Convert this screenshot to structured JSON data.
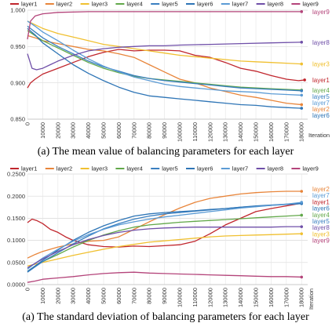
{
  "chart_data": [
    {
      "type": "line",
      "xlabel": "Iteration",
      "ylim": [
        0.85,
        1.0
      ],
      "y_ticks": [
        "0.850",
        "0.900",
        "0.950",
        "1.000"
      ],
      "y_tick_values": [
        0.85,
        0.9,
        0.95,
        1.0
      ],
      "x_ticks": [
        "0",
        "10000",
        "20000",
        "30000",
        "40000",
        "50000",
        "60000",
        "70000",
        "80000",
        "90000",
        "100000",
        "110000",
        "120000",
        "130000",
        "140000",
        "150000",
        "160000",
        "170000",
        "180000"
      ],
      "xlim": [
        0,
        184000
      ],
      "grid": true,
      "legend_position": "top",
      "caption": "(a) The mean value of balancing parameters for each layer",
      "series": [
        {
          "name": "layer1",
          "color": "#c0262d",
          "x": [
            0,
            2000,
            5000,
            10000,
            20000,
            30000,
            40000,
            50000,
            55000,
            60000,
            70000,
            80000,
            90000,
            100000,
            110000,
            120000,
            130000,
            140000,
            150000,
            160000,
            170000,
            178000,
            182000
          ],
          "values": [
            0.893,
            0.9,
            0.905,
            0.912,
            0.92,
            0.928,
            0.936,
            0.942,
            0.944,
            0.946,
            0.944,
            0.945,
            0.945,
            0.944,
            0.938,
            0.935,
            0.928,
            0.92,
            0.916,
            0.91,
            0.905,
            0.903,
            0.904
          ]
        },
        {
          "name": "layer2",
          "color": "#e8853a",
          "x": [
            0,
            5000,
            10000,
            20000,
            30000,
            40000,
            50000,
            60000,
            70000,
            80000,
            90000,
            100000,
            110000,
            120000,
            130000,
            140000,
            150000,
            160000,
            170000,
            180000
          ],
          "values": [
            0.965,
            0.962,
            0.958,
            0.954,
            0.95,
            0.946,
            0.944,
            0.94,
            0.935,
            0.925,
            0.915,
            0.905,
            0.9,
            0.893,
            0.888,
            0.883,
            0.88,
            0.876,
            0.872,
            0.87
          ]
        },
        {
          "name": "layer3",
          "color": "#f0c030",
          "x": [
            0,
            10000,
            20000,
            30000,
            40000,
            50000,
            60000,
            70000,
            80000,
            90000,
            100000,
            110000,
            120000,
            130000,
            140000,
            150000,
            160000,
            170000,
            180000
          ],
          "values": [
            0.985,
            0.975,
            0.968,
            0.963,
            0.958,
            0.953,
            0.95,
            0.947,
            0.944,
            0.941,
            0.938,
            0.936,
            0.934,
            0.932,
            0.93,
            0.929,
            0.928,
            0.927,
            0.926
          ]
        },
        {
          "name": "layer4",
          "color": "#62a84a",
          "x": [
            0,
            5000,
            10000,
            20000,
            30000,
            40000,
            50000,
            60000,
            70000,
            80000,
            90000,
            100000,
            110000,
            120000,
            130000,
            140000,
            150000,
            160000,
            170000,
            180000
          ],
          "values": [
            0.972,
            0.965,
            0.958,
            0.948,
            0.938,
            0.928,
            0.92,
            0.914,
            0.909,
            0.906,
            0.904,
            0.902,
            0.9,
            0.898,
            0.896,
            0.894,
            0.893,
            0.892,
            0.891,
            0.89
          ]
        },
        {
          "name": "layer5",
          "color": "#3a7fc0",
          "x": [
            0,
            5000,
            10000,
            20000,
            30000,
            40000,
            50000,
            60000,
            70000,
            80000,
            90000,
            100000,
            110000,
            120000,
            130000,
            140000,
            150000,
            160000,
            170000,
            180000
          ],
          "values": [
            0.978,
            0.97,
            0.962,
            0.95,
            0.94,
            0.93,
            0.922,
            0.916,
            0.91,
            0.906,
            0.903,
            0.901,
            0.899,
            0.897,
            0.895,
            0.893,
            0.892,
            0.891,
            0.89,
            0.889
          ]
        },
        {
          "name": "layer6",
          "color": "#2e75b6",
          "x": [
            0,
            5000,
            10000,
            20000,
            30000,
            40000,
            50000,
            60000,
            70000,
            80000,
            90000,
            100000,
            110000,
            120000,
            130000,
            140000,
            150000,
            160000,
            170000,
            180000
          ],
          "values": [
            0.975,
            0.966,
            0.955,
            0.94,
            0.925,
            0.913,
            0.903,
            0.894,
            0.887,
            0.882,
            0.88,
            0.878,
            0.876,
            0.874,
            0.872,
            0.87,
            0.869,
            0.867,
            0.866,
            0.865
          ]
        },
        {
          "name": "layer7",
          "color": "#5b9bd5",
          "x": [
            0,
            5000,
            10000,
            20000,
            30000,
            40000,
            50000,
            60000,
            70000,
            80000,
            90000,
            100000,
            110000,
            120000,
            130000,
            140000,
            150000,
            160000,
            170000,
            180000
          ],
          "values": [
            0.985,
            0.978,
            0.97,
            0.958,
            0.945,
            0.933,
            0.923,
            0.915,
            0.908,
            0.903,
            0.898,
            0.895,
            0.893,
            0.891,
            0.889,
            0.888,
            0.887,
            0.885,
            0.884,
            0.883
          ]
        },
        {
          "name": "layer8",
          "color": "#6f4fa8",
          "x": [
            0,
            3000,
            6000,
            10000,
            15000,
            20000,
            30000,
            40000,
            50000,
            60000,
            70000,
            80000,
            90000,
            100000,
            120000,
            140000,
            160000,
            180000
          ],
          "values": [
            0.94,
            0.92,
            0.918,
            0.92,
            0.925,
            0.93,
            0.938,
            0.944,
            0.947,
            0.949,
            0.95,
            0.951,
            0.951,
            0.952,
            0.953,
            0.954,
            0.955,
            0.956
          ]
        },
        {
          "name": "layer9",
          "color": "#b4447a",
          "x": [
            0,
            2000,
            5000,
            10000,
            20000,
            40000,
            60000,
            80000,
            100000,
            120000,
            140000,
            160000,
            180000
          ],
          "values": [
            0.96,
            0.985,
            0.992,
            0.995,
            0.997,
            0.998,
            0.998,
            0.998,
            0.998,
            0.998,
            0.998,
            0.998,
            0.998
          ]
        }
      ]
    },
    {
      "type": "line",
      "xlabel": "Iteration",
      "ylim": [
        0.0,
        0.25
      ],
      "y_ticks": [
        "0.0000",
        "0.0500",
        "0.1000",
        "0.1500",
        "0.2000",
        "0.2500"
      ],
      "y_tick_values": [
        0.0,
        0.05,
        0.1,
        0.15,
        0.2,
        0.25
      ],
      "x_ticks": [
        "0",
        "10000",
        "20000",
        "30000",
        "40000",
        "50000",
        "60000",
        "70000",
        "80000",
        "90000",
        "100000",
        "110000",
        "120000",
        "130000",
        "140000",
        "150000",
        "160000",
        "170000",
        "180000"
      ],
      "xlim": [
        0,
        184000
      ],
      "grid": true,
      "legend_position": "top",
      "caption": "(a) The standard deviation of balancing parameters for each layer",
      "series": [
        {
          "name": "layer1",
          "color": "#c0262d",
          "x": [
            0,
            3000,
            6000,
            10000,
            15000,
            20000,
            25000,
            30000,
            40000,
            50000,
            60000,
            70000,
            80000,
            90000,
            100000,
            110000,
            120000,
            130000,
            140000,
            150000,
            160000,
            170000,
            180000
          ],
          "values": [
            0.14,
            0.148,
            0.145,
            0.138,
            0.125,
            0.118,
            0.108,
            0.1,
            0.09,
            0.086,
            0.085,
            0.087,
            0.086,
            0.088,
            0.09,
            0.098,
            0.115,
            0.135,
            0.15,
            0.165,
            0.172,
            0.178,
            0.184
          ]
        },
        {
          "name": "layer2",
          "color": "#e8853a",
          "x": [
            0,
            5000,
            10000,
            20000,
            30000,
            40000,
            50000,
            60000,
            70000,
            80000,
            90000,
            100000,
            110000,
            120000,
            130000,
            140000,
            150000,
            160000,
            170000,
            180000
          ],
          "values": [
            0.06,
            0.068,
            0.075,
            0.085,
            0.092,
            0.098,
            0.1,
            0.108,
            0.125,
            0.142,
            0.158,
            0.173,
            0.186,
            0.195,
            0.2,
            0.205,
            0.208,
            0.21,
            0.211,
            0.211
          ]
        },
        {
          "name": "layer3",
          "color": "#f0c030",
          "x": [
            0,
            10000,
            20000,
            30000,
            40000,
            50000,
            60000,
            70000,
            80000,
            90000,
            100000,
            110000,
            120000,
            130000,
            140000,
            150000,
            160000,
            170000,
            180000
          ],
          "values": [
            0.042,
            0.05,
            0.058,
            0.066,
            0.073,
            0.08,
            0.086,
            0.091,
            0.096,
            0.099,
            0.102,
            0.105,
            0.108,
            0.11,
            0.111,
            0.112,
            0.113,
            0.114,
            0.115
          ]
        },
        {
          "name": "layer4",
          "color": "#62a84a",
          "x": [
            0,
            5000,
            10000,
            20000,
            30000,
            40000,
            50000,
            60000,
            70000,
            80000,
            90000,
            100000,
            110000,
            120000,
            130000,
            140000,
            150000,
            160000,
            170000,
            180000
          ],
          "values": [
            0.03,
            0.042,
            0.052,
            0.068,
            0.085,
            0.1,
            0.112,
            0.122,
            0.13,
            0.135,
            0.138,
            0.141,
            0.143,
            0.145,
            0.147,
            0.149,
            0.151,
            0.153,
            0.155,
            0.157
          ]
        },
        {
          "name": "layer5",
          "color": "#3a7fc0",
          "x": [
            0,
            5000,
            10000,
            20000,
            30000,
            40000,
            50000,
            60000,
            70000,
            80000,
            90000,
            100000,
            110000,
            120000,
            130000,
            140000,
            150000,
            160000,
            170000,
            180000
          ],
          "values": [
            0.028,
            0.04,
            0.052,
            0.072,
            0.092,
            0.11,
            0.126,
            0.138,
            0.148,
            0.155,
            0.16,
            0.163,
            0.166,
            0.169,
            0.172,
            0.175,
            0.177,
            0.179,
            0.181,
            0.183
          ]
        },
        {
          "name": "layer6",
          "color": "#2e75b6",
          "x": [
            0,
            5000,
            10000,
            20000,
            30000,
            40000,
            50000,
            60000,
            70000,
            80000,
            90000,
            100000,
            110000,
            120000,
            130000,
            140000,
            150000,
            160000,
            170000,
            180000
          ],
          "values": [
            0.03,
            0.042,
            0.055,
            0.078,
            0.1,
            0.118,
            0.133,
            0.145,
            0.155,
            0.16,
            0.163,
            0.165,
            0.167,
            0.17,
            0.172,
            0.175,
            0.178,
            0.18,
            0.182,
            0.184
          ]
        },
        {
          "name": "layer7",
          "color": "#5b9bd5",
          "x": [
            0,
            5000,
            10000,
            20000,
            30000,
            40000,
            50000,
            60000,
            70000,
            80000,
            90000,
            100000,
            110000,
            120000,
            130000,
            140000,
            150000,
            160000,
            170000,
            180000
          ],
          "values": [
            0.035,
            0.048,
            0.06,
            0.08,
            0.098,
            0.113,
            0.125,
            0.135,
            0.142,
            0.148,
            0.153,
            0.157,
            0.161,
            0.165,
            0.169,
            0.173,
            0.176,
            0.179,
            0.182,
            0.186
          ]
        },
        {
          "name": "layer8",
          "color": "#6f4fa8",
          "x": [
            0,
            5000,
            10000,
            20000,
            30000,
            40000,
            50000,
            60000,
            70000,
            80000,
            90000,
            100000,
            110000,
            120000,
            130000,
            140000,
            150000,
            160000,
            170000,
            180000
          ],
          "values": [
            0.038,
            0.048,
            0.058,
            0.075,
            0.09,
            0.102,
            0.111,
            0.118,
            0.123,
            0.126,
            0.128,
            0.129,
            0.13,
            0.13,
            0.13,
            0.13,
            0.13,
            0.13,
            0.131,
            0.131
          ]
        },
        {
          "name": "layer9",
          "color": "#b4447a",
          "x": [
            0,
            5000,
            10000,
            20000,
            30000,
            40000,
            50000,
            60000,
            70000,
            80000,
            90000,
            100000,
            110000,
            120000,
            130000,
            140000,
            150000,
            160000,
            170000,
            180000
          ],
          "values": [
            0.005,
            0.008,
            0.012,
            0.015,
            0.018,
            0.022,
            0.025,
            0.027,
            0.028,
            0.026,
            0.025,
            0.024,
            0.023,
            0.022,
            0.021,
            0.02,
            0.019,
            0.018,
            0.018,
            0.017
          ]
        }
      ],
      "end_label_order": [
        "layer2",
        "layer7",
        "layer1",
        "layer6",
        "layer4",
        "layer5",
        "layer8",
        "layer3",
        "layer9"
      ]
    }
  ]
}
